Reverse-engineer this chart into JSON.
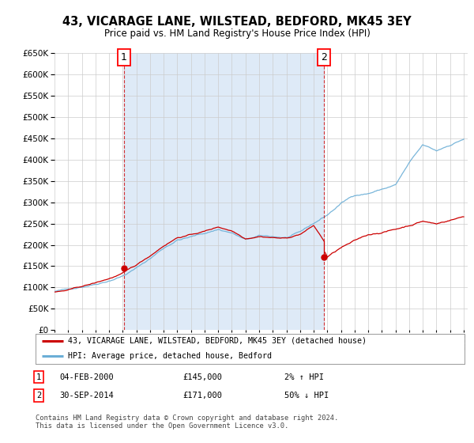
{
  "title": "43, VICARAGE LANE, WILSTEAD, BEDFORD, MK45 3EY",
  "subtitle": "Price paid vs. HM Land Registry's House Price Index (HPI)",
  "legend_line1": "43, VICARAGE LANE, WILSTEAD, BEDFORD, MK45 3EY (detached house)",
  "legend_line2": "HPI: Average price, detached house, Bedford",
  "sale1_date": "04-FEB-2000",
  "sale1_price": "£145,000",
  "sale1_hpi_text": "2% ↑ HPI",
  "sale1_year": 2000.09,
  "sale1_value": 145000,
  "sale2_date": "30-SEP-2014",
  "sale2_price": "£171,000",
  "sale2_hpi_text": "50% ↓ HPI",
  "sale2_year": 2014.75,
  "sale2_value": 171000,
  "footer": "Contains HM Land Registry data © Crown copyright and database right 2024.\nThis data is licensed under the Open Government Licence v3.0.",
  "hpi_color": "#6baed6",
  "hpi_fill_color": "#deeaf7",
  "price_color": "#cc0000",
  "grid_color": "#cccccc",
  "background_color": "#ffffff",
  "xlim_start": 1995.0,
  "xlim_end": 2025.3
}
